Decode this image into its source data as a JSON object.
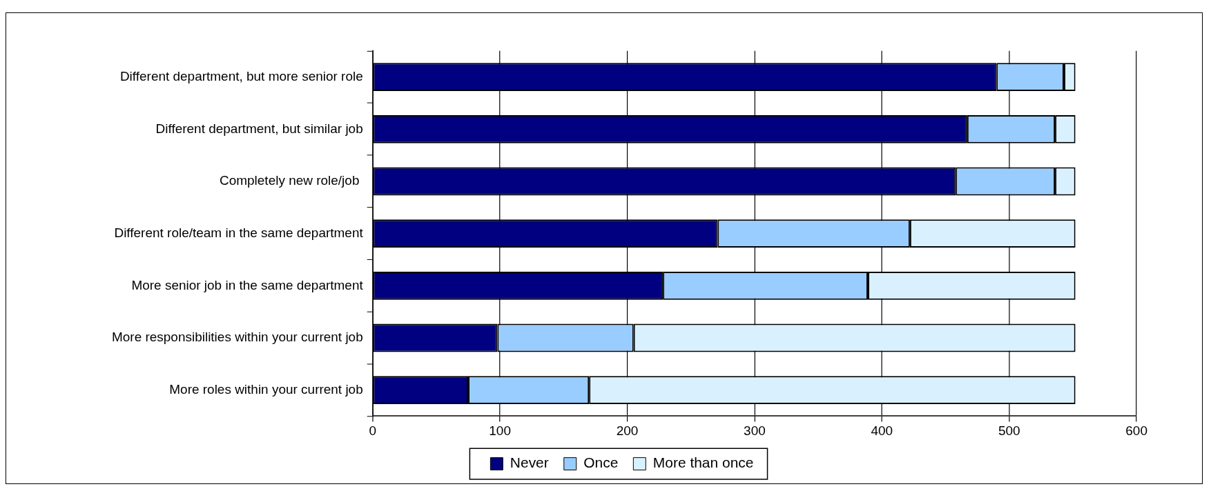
{
  "chart_data": {
    "type": "bar",
    "orientation": "horizontal",
    "stacked": true,
    "categories": [
      "Different department, but more senior role",
      "Different department, but similar job",
      "Completely new role/job ",
      "Different role/team in the same department",
      "More senior job in the same department",
      "More responsibilities within your current job",
      "More roles within your current job"
    ],
    "series": [
      {
        "name": "Never",
        "color": "#000080",
        "values": [
          490,
          467,
          458,
          271,
          228,
          98,
          75
        ]
      },
      {
        "name": "Once",
        "color": "#99ccff",
        "values": [
          53,
          69,
          78,
          151,
          161,
          107,
          95
        ]
      },
      {
        "name": "More than once",
        "color": "#d9f1ff",
        "values": [
          9,
          16,
          16,
          130,
          163,
          347,
          382
        ]
      }
    ],
    "xlim": [
      0,
      600
    ],
    "xticks": [
      0,
      100,
      200,
      300,
      400,
      500,
      600
    ],
    "grid": "x",
    "legend": "bottom"
  }
}
